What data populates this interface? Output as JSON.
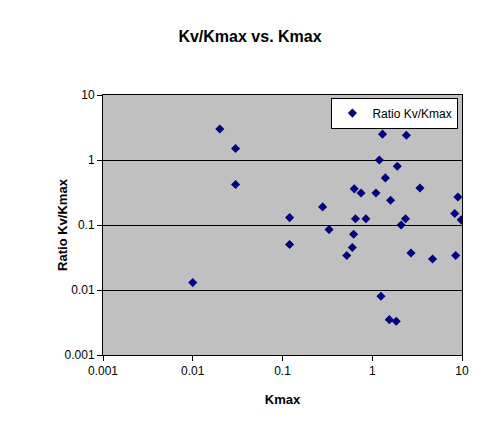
{
  "chart_data": {
    "type": "scatter",
    "title": "Kv/Kmax vs. Kmax",
    "x_label": "Kmax",
    "y_label": "Ratio Kv/Kmax",
    "log": true,
    "grid": "y",
    "legend": "top right",
    "xlim": [
      0.001,
      10
    ],
    "ylim": [
      0.001,
      10
    ],
    "xticks": [
      0.001,
      0.01,
      0.1,
      1,
      10
    ],
    "yticks": [
      0.001,
      0.01,
      0.1,
      1,
      10
    ],
    "series": [
      {
        "name": "Ratio Kv/Kmax",
        "color": "#000080",
        "marker": "diamond",
        "x": [
          0.01,
          0.02,
          0.03,
          0.03,
          0.12,
          0.12,
          0.28,
          0.33,
          0.52,
          0.6,
          0.62,
          0.63,
          0.65,
          0.75,
          0.85,
          1.1,
          1.2,
          1.25,
          1.3,
          1.4,
          1.55,
          1.6,
          1.85,
          1.9,
          2.1,
          2.35,
          2.4,
          2.7,
          3.4,
          4.7,
          8.3,
          8.5,
          9.0,
          9.8
        ],
        "values": [
          0.013,
          3.0,
          1.5,
          0.42,
          0.13,
          0.05,
          0.19,
          0.085,
          0.034,
          0.045,
          0.072,
          0.36,
          0.125,
          0.31,
          0.125,
          0.31,
          1.0,
          0.008,
          2.5,
          0.53,
          0.0035,
          0.24,
          0.0033,
          0.8,
          0.1,
          0.125,
          2.4,
          0.037,
          0.37,
          0.03,
          0.15,
          0.034,
          0.27,
          0.12
        ]
      }
    ]
  }
}
